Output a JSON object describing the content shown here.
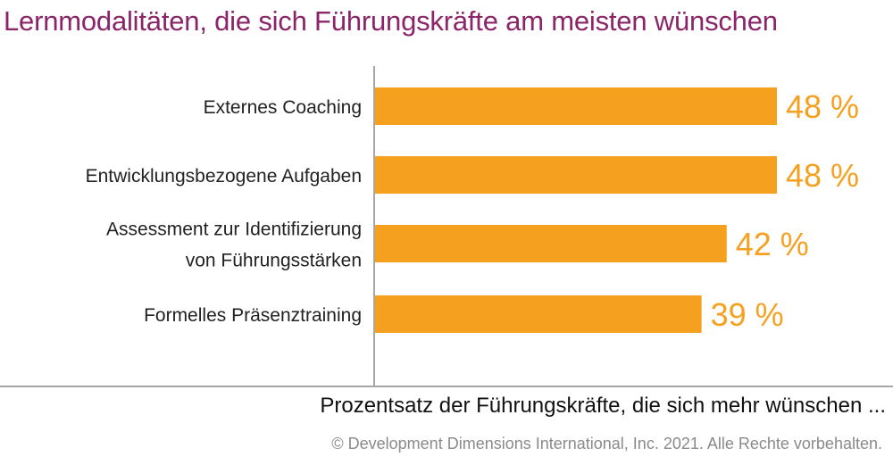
{
  "chart_data": {
    "type": "bar",
    "orientation": "horizontal",
    "title": "Lernmodalitäten, die sich Führungskräfte am meisten wünschen",
    "xlabel": "Prozentsatz der Führungskräfte, die sich mehr wünschen ...",
    "ylabel": "",
    "categories": [
      [
        "Externes Coaching"
      ],
      [
        "Entwicklungsbezogene Aufgaben"
      ],
      [
        "Assessment zur Identifizierung",
        "von Führungsstärken"
      ],
      [
        "Formelles Präsenztraining"
      ]
    ],
    "values": [
      48,
      48,
      42,
      39
    ],
    "value_labels": [
      "48 %",
      "48 %",
      "42 %",
      "39 %"
    ],
    "xlim": [
      0,
      50
    ],
    "grid": false,
    "legend": "none",
    "colors": {
      "bar": "#f5a11f",
      "value_label": "#f5a11f",
      "title": "#8b2468",
      "axis": "#a6a6a6"
    }
  },
  "footer": {
    "copyright": "© Development Dimensions International, Inc. 2021. Alle Rechte vorbehalten."
  }
}
